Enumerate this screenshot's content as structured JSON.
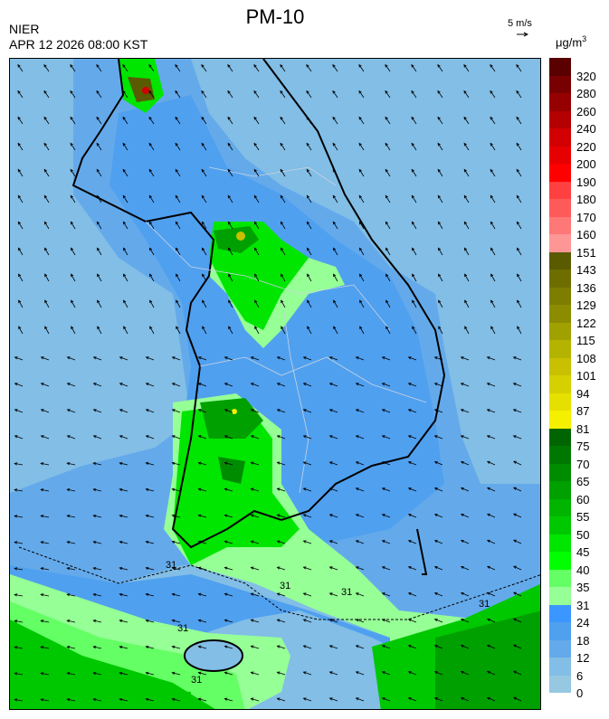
{
  "header": {
    "title": "PM-10",
    "agency": "NIER",
    "datetime": "APR 12 2026 08:00 KST",
    "vector_scale_label": "5 m/s",
    "unit_base": "μg/m",
    "unit_exp": "3"
  },
  "map": {
    "type": "PM-10 concentration field with wind vectors",
    "contour_labels": [
      "31",
      "31",
      "31",
      "31",
      "31",
      "31"
    ]
  },
  "legend": {
    "labels": [
      "320",
      "280",
      "260",
      "240",
      "220",
      "200",
      "190",
      "180",
      "170",
      "160",
      "151",
      "143",
      "136",
      "129",
      "122",
      "115",
      "108",
      "101",
      "94",
      "87",
      "81",
      "75",
      "70",
      "65",
      "60",
      "55",
      "50",
      "45",
      "40",
      "35",
      "31",
      "24",
      "18",
      "12",
      "6",
      "0"
    ],
    "colors": [
      "#5a0000",
      "#780000",
      "#960000",
      "#b40000",
      "#d20000",
      "#e60000",
      "#ff0000",
      "#ff4040",
      "#ff5a5a",
      "#ff7878",
      "#ff9696",
      "#5a5a00",
      "#6e6e00",
      "#7d7d00",
      "#8c8c00",
      "#a0a000",
      "#b4b400",
      "#c8c000",
      "#d7d000",
      "#e6e000",
      "#f5f000",
      "#006400",
      "#007800",
      "#008c00",
      "#00a000",
      "#00b400",
      "#00c800",
      "#00e600",
      "#00ff00",
      "#64ff64",
      "#96ff96",
      "#3c96ff",
      "#50a0f0",
      "#64aaeb",
      "#82bee6",
      "#96c8e1"
    ]
  }
}
